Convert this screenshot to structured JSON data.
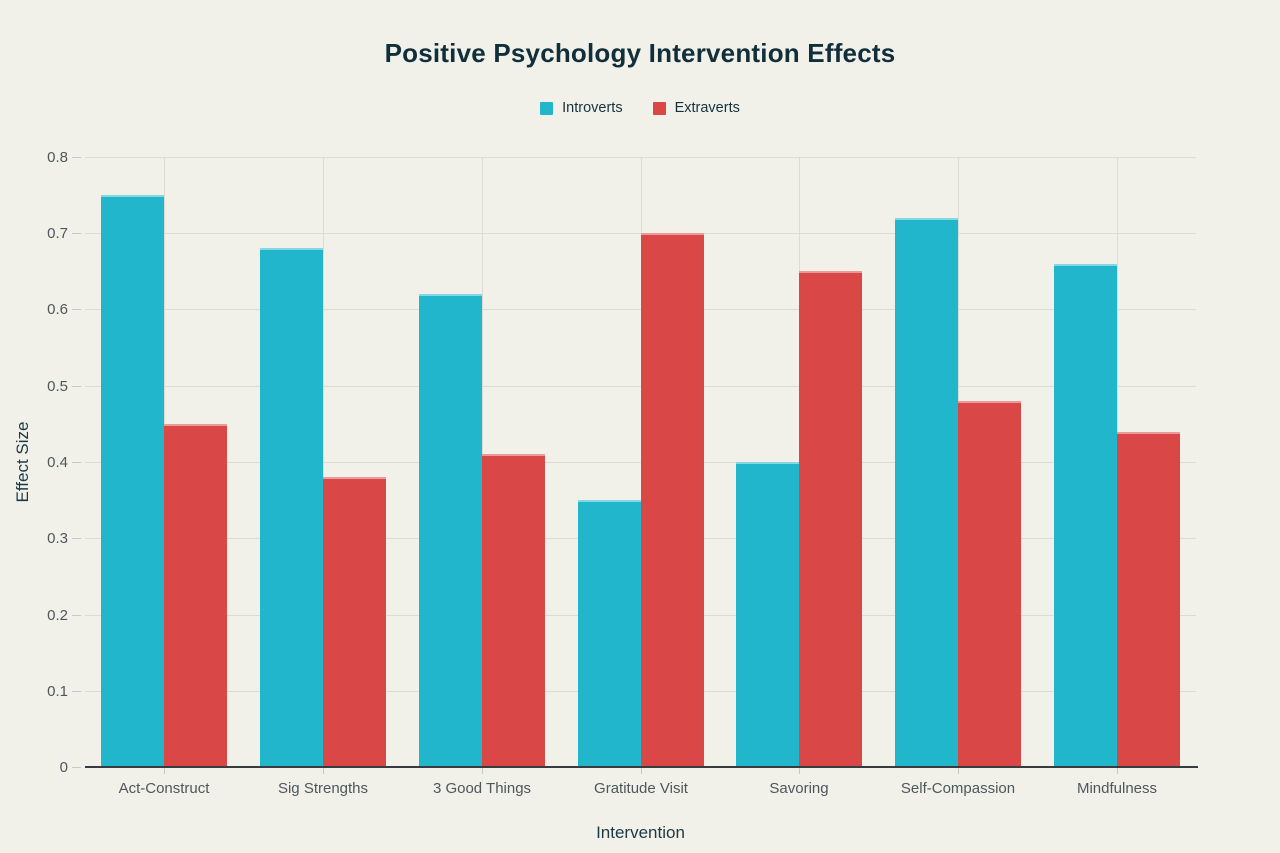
{
  "title": "Positive Psychology Intervention Effects",
  "colors": {
    "background": "#f1f1ea",
    "introverts": "#22b6cd",
    "extraverts": "#d94747",
    "grid": "#dcdcd4",
    "axis_line": "#363c3f",
    "tick_label": "#4d575c",
    "axis_title": "#1b3a45",
    "title": "#112f3a"
  },
  "chart_data": {
    "type": "bar",
    "title": "Positive Psychology Intervention Effects",
    "categories": [
      "Act-Construct",
      "Sig Strengths",
      "3 Good Things",
      "Gratitude Visit",
      "Savoring",
      "Self-Compassion",
      "Mindfulness"
    ],
    "series": [
      {
        "name": "Introverts",
        "color": "#22b6cd",
        "values": [
          0.75,
          0.68,
          0.62,
          0.35,
          0.4,
          0.72,
          0.66
        ]
      },
      {
        "name": "Extraverts",
        "color": "#d94747",
        "values": [
          0.45,
          0.38,
          0.41,
          0.7,
          0.65,
          0.48,
          0.44
        ]
      }
    ],
    "xlabel": "Intervention",
    "ylabel": "Effect Size",
    "ylim": [
      0,
      0.8
    ],
    "ytick_step": 0.1,
    "ytick_labels": [
      "0",
      "0.1",
      "0.2",
      "0.3",
      "0.4",
      "0.5",
      "0.6",
      "0.7",
      "0.8"
    ],
    "grid": true,
    "vertical_gridlines": true,
    "legend_position": "top-center"
  }
}
